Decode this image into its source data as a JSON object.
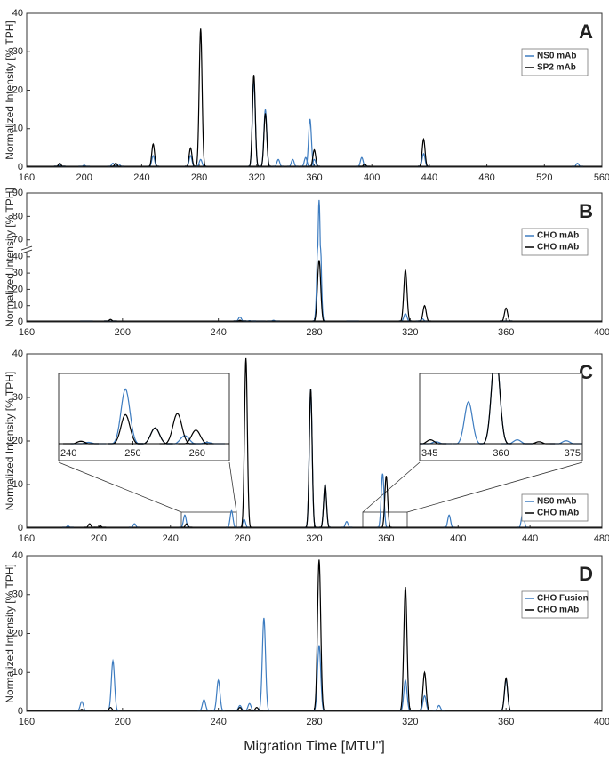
{
  "chart_data": [
    {
      "type": "line",
      "label": "A",
      "ylabel": "Normalized Intensity [% TPH]",
      "xlim": [
        160,
        560
      ],
      "xticks": [
        160,
        200,
        240,
        280,
        320,
        360,
        400,
        440,
        480,
        520,
        560
      ],
      "ylim": [
        0,
        40
      ],
      "yticks": [
        0,
        10,
        20,
        30,
        40
      ],
      "legend": "upper right",
      "series": [
        {
          "name": "NS0 mAb",
          "color": "#3d7cc0",
          "x": [
            183,
            200,
            220,
            224,
            248,
            274,
            281,
            318,
            326,
            335,
            345,
            354,
            357,
            360,
            393,
            436,
            543
          ],
          "values": [
            0.5,
            0.5,
            1,
            0.8,
            3,
            3,
            2,
            23,
            15,
            2,
            2,
            2.5,
            12.5,
            2,
            2.5,
            3.5,
            1
          ]
        },
        {
          "name": "SP2 mAb",
          "color": "#000000",
          "x": [
            183,
            222,
            248,
            274,
            281,
            318,
            326,
            360,
            395,
            436
          ],
          "values": [
            1,
            1,
            6,
            5,
            36,
            24,
            14,
            4.5,
            0.8,
            7.3
          ]
        }
      ]
    },
    {
      "type": "line",
      "label": "B",
      "ylabel": "Normalized Intensity [% TPH]",
      "xlim": [
        160,
        400
      ],
      "xticks": [
        160,
        200,
        240,
        280,
        320,
        360,
        400
      ],
      "ylim": [
        0,
        90
      ],
      "ybreak": [
        42,
        68
      ],
      "yticks": [
        0,
        10,
        20,
        30,
        40,
        70,
        80,
        90
      ],
      "legend": "upper right",
      "series": [
        {
          "name": "CHO mAb",
          "color": "#3d7cc0",
          "x": [
            185,
            195,
            249,
            253,
            257,
            263,
            282,
            296,
            318,
            325,
            360
          ],
          "values": [
            0.3,
            0.5,
            3,
            0.8,
            0.5,
            1,
            87,
            0.5,
            5,
            2,
            0.5
          ]
        },
        {
          "name": "CHO mAb",
          "color": "#000000",
          "x": [
            195,
            249,
            282,
            318,
            326,
            360
          ],
          "values": [
            1.5,
            1,
            38,
            32,
            10,
            8.5
          ]
        }
      ]
    },
    {
      "type": "line",
      "label": "C",
      "ylabel": "Normalized Intensity [% TPH]",
      "xlim": [
        160,
        480
      ],
      "xticks": [
        160,
        200,
        240,
        280,
        320,
        360,
        400,
        440,
        480
      ],
      "ylim": [
        0,
        40
      ],
      "yticks": [
        0,
        10,
        20,
        30,
        40
      ],
      "legend": "lower right",
      "series": [
        {
          "name": "NS0 mAb",
          "color": "#3d7cc0",
          "x": [
            183,
            220,
            248,
            274,
            281,
            318,
            326,
            338,
            358,
            395,
            436
          ],
          "values": [
            0.5,
            1,
            3,
            4,
            2,
            32,
            10,
            1.5,
            12.5,
            3,
            3.5
          ]
        },
        {
          "name": "CHO mAb",
          "color": "#000000",
          "x": [
            195,
            201,
            249,
            282,
            318,
            326,
            360
          ],
          "values": [
            1,
            0.5,
            1,
            39,
            32,
            10,
            12
          ]
        }
      ]
    },
    {
      "type": "line",
      "xlim": [
        240,
        263
      ],
      "xticks": [
        240,
        250,
        260
      ],
      "ylim": [
        0,
        6
      ],
      "series": [
        {
          "color": "#3d7cc0",
          "x": [
            244,
            249,
            253,
            257,
            260
          ],
          "values": [
            0.2,
            5,
            1.5,
            0.8,
            0.2
          ]
        },
        {
          "color": "#000000",
          "x": [
            243,
            249,
            253,
            256,
            258.5
          ],
          "values": [
            0.3,
            2.7,
            1.5,
            2.8,
            1.3
          ]
        }
      ]
    },
    {
      "type": "line",
      "xlim": [
        345,
        375
      ],
      "xticks": [
        345,
        360,
        375
      ],
      "ylim": [
        0,
        7
      ],
      "series": [
        {
          "color": "#3d7cc0",
          "x": [
            348,
            354,
            359,
            363,
            372
          ],
          "values": [
            0.3,
            4.5,
            10,
            0.5,
            0.4
          ]
        },
        {
          "color": "#000000",
          "x": [
            347,
            359,
            367
          ],
          "values": [
            0.5,
            10,
            0.3
          ]
        }
      ]
    },
    {
      "type": "line",
      "label": "D",
      "ylabel": "Normalized Intensity [% TPH]",
      "xlabel": "Migration Time [MTU\"]",
      "xlim": [
        160,
        400
      ],
      "xticks": [
        160,
        200,
        240,
        280,
        320,
        360,
        400
      ],
      "ylim": [
        0,
        40
      ],
      "yticks": [
        0,
        10,
        20,
        30,
        40
      ],
      "legend": "upper right",
      "series": [
        {
          "name": "CHO Fusion",
          "color": "#3d7cc0",
          "x": [
            183,
            196,
            234,
            240,
            249,
            253,
            259,
            282,
            318,
            326,
            332,
            360
          ],
          "values": [
            2.5,
            13,
            3,
            8,
            1.5,
            2,
            24,
            17,
            8,
            4,
            1.5,
            8
          ]
        },
        {
          "name": "CHO mAb",
          "color": "#000000",
          "x": [
            183,
            195,
            249,
            253,
            256,
            282,
            318,
            326,
            360
          ],
          "values": [
            0.5,
            1,
            1,
            0.5,
            1,
            39,
            32,
            10,
            8.5
          ]
        }
      ]
    }
  ]
}
